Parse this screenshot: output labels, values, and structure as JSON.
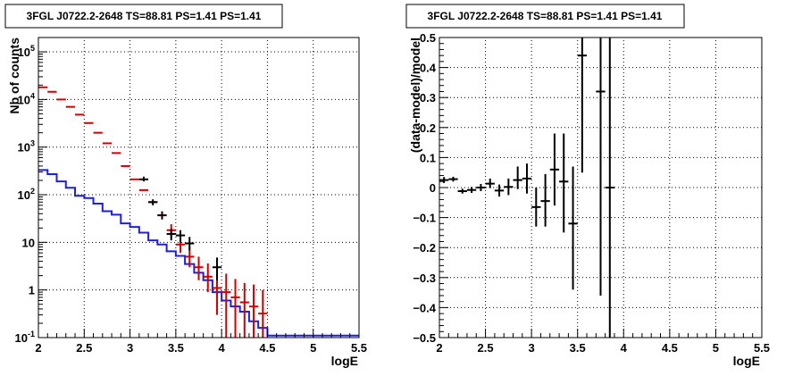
{
  "chart_data": [
    {
      "type": "scatter",
      "title": "3FGL J0722.2-2648 TS=88.81 PS=1.41 PS=1.41",
      "xlabel": "logE",
      "ylabel": "Nb of counts",
      "xlim": [
        2,
        5.5
      ],
      "ylim": [
        0.1,
        200000
      ],
      "yscale": "log",
      "grid": true,
      "x_ticks": [
        "2",
        "2.5",
        "3",
        "3.5",
        "4",
        "4.5",
        "5",
        "5.5"
      ],
      "y_ticks": [
        "10^{-1}",
        "1",
        "10",
        "10^{2}",
        "10^{3}",
        "10^{4}",
        "10^{5}"
      ],
      "colors": {
        "model": "#1f1fd8",
        "source_model": "#d00000",
        "data": "#000000"
      },
      "series": [
        {
          "role": "model-histogram",
          "color": "#1f1fd8",
          "bin_edges": [
            2.0,
            2.1,
            2.2,
            2.3,
            2.4,
            2.5,
            2.6,
            2.7,
            2.8,
            2.9,
            3.0,
            3.1,
            3.2,
            3.3,
            3.4,
            3.5,
            3.6,
            3.7,
            3.8,
            3.9,
            4.0,
            4.1,
            4.2,
            4.3,
            4.4,
            4.5,
            5.5
          ],
          "values": [
            330,
            270,
            190,
            140,
            95,
            85,
            65,
            45,
            38,
            25,
            21,
            16,
            11,
            9,
            6.5,
            5.2,
            3.5,
            2.3,
            1.6,
            0.9,
            0.6,
            0.45,
            0.35,
            0.22,
            0.16,
            0.11
          ]
        },
        {
          "role": "model-points",
          "color": "#d00000",
          "x": [
            2.05,
            2.15,
            2.25,
            2.35,
            2.45,
            2.55,
            2.65,
            2.75,
            2.85,
            2.95,
            3.05,
            3.15,
            3.25,
            3.35,
            3.45,
            3.55,
            3.65,
            3.75,
            3.85,
            3.95,
            4.05,
            4.15,
            4.25,
            4.35,
            4.45
          ],
          "y": [
            18000,
            14500,
            10000,
            7000,
            4800,
            3200,
            2000,
            1200,
            750,
            400,
            210,
            125,
            70,
            37,
            18,
            9,
            5,
            3,
            1.9,
            1.1,
            0.9,
            0.7,
            0.55,
            0.45,
            0.32
          ],
          "y_low": [
            null,
            null,
            null,
            null,
            null,
            null,
            null,
            null,
            null,
            null,
            null,
            null,
            null,
            30,
            13,
            6,
            3,
            1.6,
            0.9,
            0.3,
            0.1,
            0.1,
            0.1,
            0.1,
            0.1
          ],
          "y_high": [
            null,
            null,
            null,
            null,
            null,
            null,
            null,
            null,
            null,
            null,
            null,
            null,
            null,
            45,
            24,
            13,
            8,
            5,
            3.6,
            2.3,
            2.2,
            1.7,
            1.4,
            1.3,
            1.0
          ]
        },
        {
          "role": "data-points",
          "color": "#000000",
          "x": [
            3.15,
            3.25,
            3.35,
            3.45,
            3.55,
            3.65,
            3.95
          ],
          "y": [
            210,
            70,
            37,
            15,
            14,
            9.5,
            3
          ],
          "y_low": [
            190,
            60,
            31,
            11,
            10,
            6.8,
            1.6
          ],
          "y_high": [
            240,
            80,
            44,
            19,
            18,
            13,
            4.8
          ]
        }
      ]
    },
    {
      "type": "scatter",
      "title": "3FGL J0722.2-2648 TS=88.81 PS=1.41 PS=1.41",
      "xlabel": "logE",
      "ylabel": "(data-model)/model",
      "xlim": [
        2,
        5.5
      ],
      "ylim": [
        -0.5,
        0.5
      ],
      "grid": true,
      "x_ticks": [
        "2",
        "2.5",
        "3",
        "3.5",
        "4",
        "4.5",
        "5",
        "5.5"
      ],
      "y_ticks": [
        "−0.5",
        "−0.4",
        "−0.3",
        "−0.2",
        "−0.1",
        "0",
        "0.1",
        "0.2",
        "0.3",
        "0.4",
        "0.5"
      ],
      "series": [
        {
          "role": "residuals",
          "color": "#000000",
          "x": [
            2.05,
            2.15,
            2.25,
            2.35,
            2.45,
            2.55,
            2.65,
            2.75,
            2.85,
            2.95,
            3.05,
            3.15,
            3.25,
            3.35,
            3.45,
            3.55,
            3.75,
            3.85
          ],
          "y": [
            0.025,
            0.028,
            -0.012,
            -0.008,
            0.0,
            0.013,
            -0.01,
            0.002,
            0.025,
            0.03,
            -0.065,
            -0.045,
            0.06,
            0.02,
            -0.12,
            0.44,
            0.32,
            0.0
          ],
          "y_low": [
            0.015,
            0.02,
            -0.02,
            -0.018,
            -0.012,
            -0.002,
            -0.03,
            -0.025,
            -0.005,
            -0.02,
            -0.13,
            -0.13,
            -0.06,
            -0.15,
            -0.34,
            0.05,
            -0.36,
            -0.5
          ],
          "y_high": [
            0.035,
            0.036,
            -0.004,
            0.002,
            0.012,
            0.03,
            0.01,
            0.03,
            0.07,
            0.08,
            0.0,
            0.045,
            0.18,
            0.18,
            0.07,
            0.5,
            0.5,
            0.5
          ]
        }
      ]
    }
  ]
}
